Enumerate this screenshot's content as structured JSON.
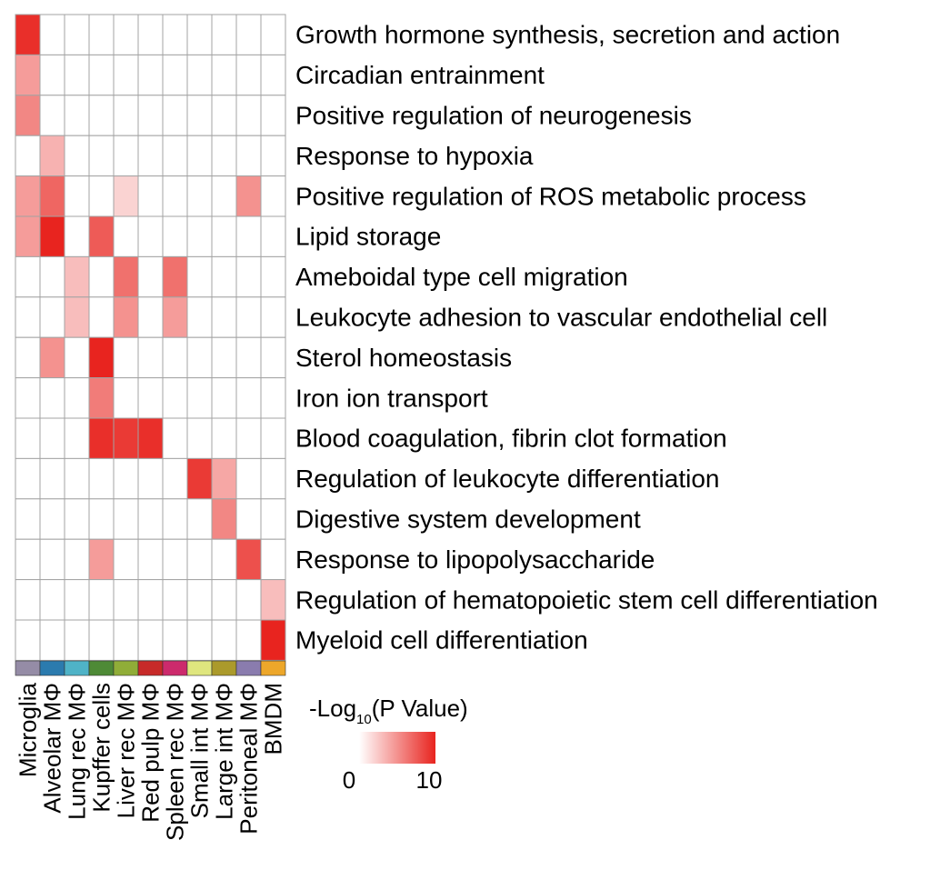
{
  "chart_data": {
    "type": "heatmap",
    "title": "",
    "columns": [
      "Microglia",
      "Alveolar MΦ",
      "Lung rec MΦ",
      "Kupffer cells",
      "Liver rec MΦ",
      "Red pulp MΦ",
      "Spleen rec MΦ",
      "Small int MΦ",
      "Large int MΦ",
      "Peritoneal MΦ",
      "BMDM"
    ],
    "column_colors": [
      "#958ca6",
      "#2b7bae",
      "#4fb3c7",
      "#4e8a36",
      "#90ad38",
      "#c72a29",
      "#cc2a6c",
      "#dfe67e",
      "#ab9a2b",
      "#8a7cae",
      "#eda72a"
    ],
    "rows": [
      "Growth hormone synthesis, secretion and action",
      "Circadian entrainment",
      "Positive regulation of neurogenesis",
      "Response to hypoxia",
      "Positive regulation of ROS metabolic process",
      "Lipid storage",
      "Ameboidal type cell migration",
      "Leukocyte adhesion to vascular endothelial cell",
      "Sterol homeostasis",
      "Iron ion transport",
      "Blood coagulation, fibrin clot formation",
      "Regulation of leukocyte differentiation",
      "Digestive system development",
      "Response to lipopolysaccharide",
      "Regulation of hematopoietic stem cell differentiation",
      "Myeloid cell differentiation"
    ],
    "values": [
      [
        9.5,
        0,
        0,
        0,
        0,
        0,
        0,
        0,
        0,
        0,
        0
      ],
      [
        4.5,
        0,
        0,
        0,
        0,
        0,
        0,
        0,
        0,
        0,
        0
      ],
      [
        5.5,
        0,
        0,
        0,
        0,
        0,
        0,
        0,
        0,
        0,
        0
      ],
      [
        0,
        3.5,
        0,
        0,
        0,
        0,
        0,
        0,
        0,
        0,
        0
      ],
      [
        4.5,
        7,
        0,
        0,
        2,
        0,
        0,
        0,
        0,
        5,
        0
      ],
      [
        4.5,
        10,
        0,
        7.5,
        0,
        0,
        0,
        0,
        0,
        0,
        0
      ],
      [
        0,
        0,
        3,
        0,
        6.5,
        0,
        6.5,
        0,
        0,
        0,
        0
      ],
      [
        0,
        0,
        3,
        0,
        5,
        0,
        4.5,
        0,
        0,
        0,
        0
      ],
      [
        0,
        5,
        0,
        10,
        0,
        0,
        0,
        0,
        0,
        0,
        0
      ],
      [
        0,
        0,
        0,
        6,
        0,
        0,
        0,
        0,
        0,
        0,
        0
      ],
      [
        0,
        0,
        0,
        9.5,
        9,
        9.5,
        0,
        0,
        0,
        0,
        0
      ],
      [
        0,
        0,
        0,
        0,
        0,
        0,
        0,
        9,
        4,
        0,
        0
      ],
      [
        0,
        0,
        0,
        0,
        0,
        0,
        0,
        0,
        5.5,
        0,
        0
      ],
      [
        0,
        0,
        0,
        4.5,
        0,
        0,
        0,
        0,
        0,
        8,
        0
      ],
      [
        0,
        0,
        0,
        0,
        0,
        0,
        0,
        0,
        0,
        0,
        3
      ],
      [
        0,
        0,
        0,
        0,
        0,
        0,
        0,
        0,
        0,
        0,
        10
      ]
    ],
    "legend": {
      "title_prefix": "-Log",
      "title_subscript": "10",
      "title_suffix": "(P Value)",
      "min_label": "0",
      "max_label": "10",
      "min": 0,
      "max": 10,
      "color_low": "#ffffff",
      "color_high": "#e8241f"
    }
  }
}
